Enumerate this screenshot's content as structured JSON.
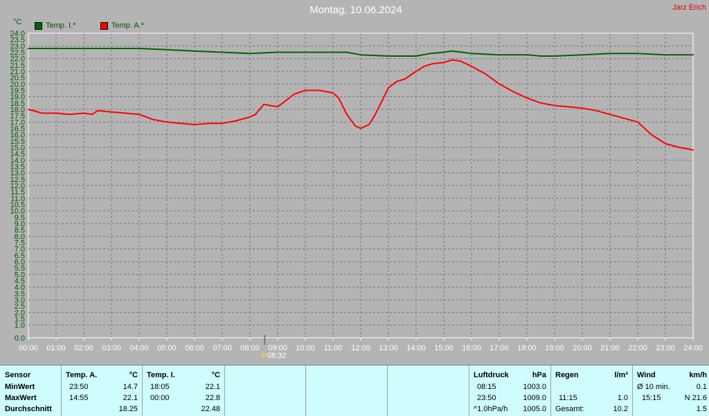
{
  "header": {
    "title": "Montag, 10.06.2024",
    "author": "Jarz Erich"
  },
  "legend": [
    {
      "label": "Temp. I.*",
      "color": "#006400"
    },
    {
      "label": "Temp. A.*",
      "color": "#ff0000"
    }
  ],
  "marker": {
    "label": "08:32"
  },
  "chart_data": {
    "type": "line",
    "title": "Montag, 10.06.2024",
    "ylabel": "°C",
    "xlabel": "",
    "ylim": [
      0,
      24
    ],
    "xlim": [
      0,
      24
    ],
    "grid": true,
    "legend_position": "top-left",
    "yticks": [
      "0.0",
      "1.0",
      "1.5",
      "2.0",
      "2.5",
      "3.0",
      "3.5",
      "4.0",
      "4.5",
      "5.0",
      "5.5",
      "6.0",
      "6.5",
      "7.0",
      "7.5",
      "8.0",
      "8.5",
      "9.0",
      "9.5",
      "10.0",
      "10.5",
      "11.0",
      "11.5",
      "12.0",
      "12.5",
      "13.0",
      "13.5",
      "14.0",
      "14.5",
      "15.0",
      "15.5",
      "16.0",
      "16.5",
      "17.0",
      "17.5",
      "18.0",
      "18.5",
      "19.0",
      "19.5",
      "20.0",
      "20.5",
      "21.0",
      "21.5",
      "22.0",
      "22.5",
      "23.0",
      "23.5",
      "24.0"
    ],
    "xticks": [
      "00:00",
      "01:00",
      "02:00",
      "03:00",
      "04:00",
      "05:00",
      "06:00",
      "07:00",
      "08:00",
      "09:00",
      "10:00",
      "11:00",
      "12:00",
      "13:00",
      "14:00",
      "15:00",
      "16:00",
      "17:00",
      "18:00",
      "19:00",
      "20:00",
      "21:00",
      "22:00",
      "23:00",
      "24:00"
    ],
    "series": [
      {
        "name": "Temp. I.*",
        "color": "#006400",
        "x": [
          0,
          1,
          2,
          3,
          4,
          5,
          6,
          7,
          8,
          9,
          10,
          11,
          11.5,
          12,
          13,
          14,
          14.5,
          15,
          15.3,
          16,
          17,
          18,
          18.5,
          19,
          20,
          21,
          22,
          23,
          24
        ],
        "y": [
          22.8,
          22.8,
          22.8,
          22.8,
          22.8,
          22.7,
          22.6,
          22.5,
          22.4,
          22.5,
          22.5,
          22.5,
          22.5,
          22.3,
          22.2,
          22.2,
          22.4,
          22.5,
          22.6,
          22.4,
          22.3,
          22.3,
          22.2,
          22.2,
          22.3,
          22.4,
          22.4,
          22.3,
          22.3
        ]
      },
      {
        "name": "Temp. A.*",
        "color": "#ff0000",
        "x": [
          0,
          0.5,
          1,
          1.5,
          2,
          2.3,
          2.5,
          3,
          3.5,
          4,
          4.5,
          5,
          5.5,
          6,
          6.5,
          7,
          7.5,
          8,
          8.2,
          8.5,
          9,
          9.3,
          9.6,
          10,
          10.5,
          11,
          11.2,
          11.5,
          11.8,
          12,
          12.3,
          12.5,
          12.8,
          13,
          13.3,
          13.6,
          14,
          14.3,
          14.6,
          15,
          15.3,
          15.6,
          16,
          16.5,
          17,
          17.5,
          18,
          18.5,
          19,
          19.5,
          20,
          20.5,
          21,
          21.5,
          22,
          22.5,
          23,
          23.5,
          24
        ],
        "y": [
          18.0,
          17.7,
          17.7,
          17.6,
          17.7,
          17.6,
          17.9,
          17.8,
          17.7,
          17.6,
          17.2,
          17.0,
          16.9,
          16.8,
          16.9,
          16.9,
          17.1,
          17.4,
          17.6,
          18.4,
          18.2,
          18.7,
          19.2,
          19.5,
          19.5,
          19.3,
          18.9,
          17.6,
          16.7,
          16.5,
          16.8,
          17.5,
          18.8,
          19.7,
          20.2,
          20.4,
          21.0,
          21.4,
          21.6,
          21.7,
          21.9,
          21.8,
          21.4,
          20.8,
          20.0,
          19.4,
          18.9,
          18.5,
          18.3,
          18.2,
          18.1,
          17.9,
          17.6,
          17.3,
          17.0,
          16.0,
          15.3,
          15.0,
          14.8
        ]
      }
    ]
  },
  "table": {
    "sensor": {
      "head": "Sensor",
      "rows": [
        "MinWert",
        "MaxWert",
        "Durchschnitt"
      ]
    },
    "temp_a": {
      "head": "Temp. A.",
      "unit": "°C",
      "rows": [
        {
          "time": "23:50",
          "value": "14.7"
        },
        {
          "time": "14:55",
          "value": "22.1"
        },
        {
          "time": "",
          "value": "18.25"
        }
      ]
    },
    "temp_i": {
      "head": "Temp. I.",
      "unit": "°C",
      "rows": [
        {
          "time": "18:05",
          "value": "22.1"
        },
        {
          "time": "00:00",
          "value": "22.8"
        },
        {
          "time": "",
          "value": "22.48"
        }
      ]
    },
    "pressure": {
      "head": "Luftdruck",
      "unit": "hPa",
      "rows": [
        {
          "time": "08:15",
          "value": "1003.0"
        },
        {
          "time": "23:50",
          "value": "1009.0"
        },
        {
          "time": "^1.0hPa/h",
          "value": "1005.0"
        }
      ]
    },
    "rain": {
      "head": "Regen",
      "unit": "l/m²",
      "rows": [
        {
          "time": "",
          "value": ""
        },
        {
          "time": "11:15",
          "value": "1.0"
        },
        {
          "time": "Gesamt:",
          "value": "10.2"
        }
      ]
    },
    "wind": {
      "head": "Wind",
      "unit": "km/h",
      "rows": [
        {
          "time": "Ø 10 min.",
          "value": "0.1"
        },
        {
          "time": "15:15",
          "value": "N 21.6"
        },
        {
          "time": "",
          "value": "1.5"
        }
      ]
    }
  }
}
